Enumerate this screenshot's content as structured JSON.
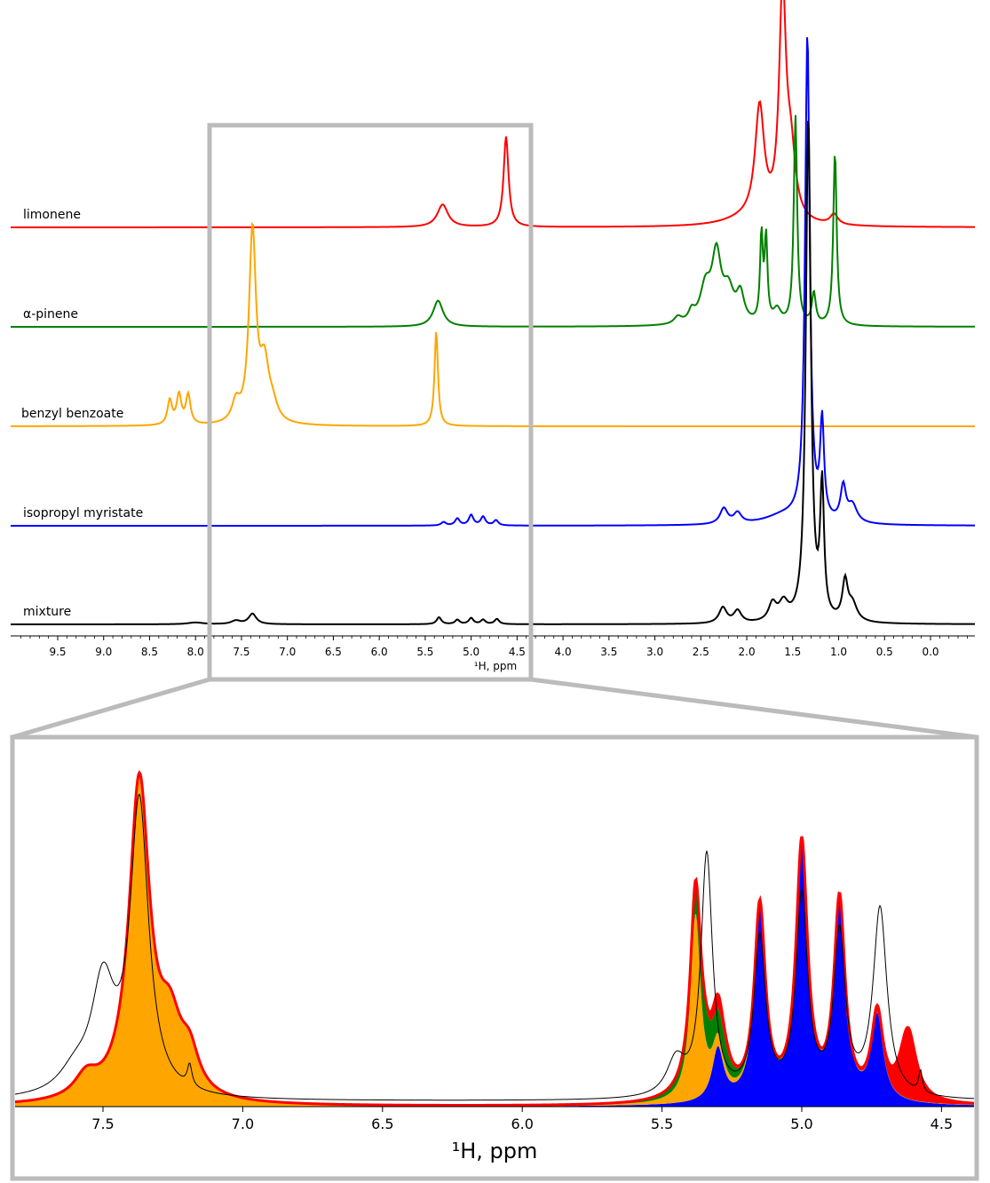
{
  "chart_data": [
    {
      "type": "line",
      "xlabel": "¹H, ppm",
      "x_reversed": true,
      "xlim": [
        9.95,
        -0.5
      ],
      "xticks": [
        "9.5",
        "9.0",
        "8.5",
        "8.0",
        "7.5",
        "7.0",
        "6.5",
        "6.0",
        "5.5",
        "5.0",
        "4.5",
        "4.0",
        "3.5",
        "3.0",
        "2.5",
        "2.0",
        "1.5",
        "1.0",
        "0.5",
        "0.0"
      ],
      "series": [
        {
          "name": "limonene",
          "color": "#ff0000",
          "peaks": [
            {
              "ppm": 5.31,
              "height": 0.13,
              "width": 0.07
            },
            {
              "ppm": 4.62,
              "height": 0.52,
              "width": 0.032
            },
            {
              "ppm": 2.0,
              "height": 0.04,
              "width": 0.3
            },
            {
              "ppm": 1.86,
              "height": 0.64,
              "width": 0.06
            },
            {
              "ppm": 1.61,
              "height": 1.3,
              "width": 0.045
            },
            {
              "ppm": 1.52,
              "height": 0.35,
              "width": 0.06
            },
            {
              "ppm": 1.05,
              "height": 0.06,
              "width": 0.05
            }
          ]
        },
        {
          "name": "α-pinene",
          "color": "#008000",
          "peaks": [
            {
              "ppm": 5.36,
              "height": 0.15,
              "width": 0.065
            },
            {
              "ppm": 2.75,
              "height": 0.04,
              "width": 0.05
            },
            {
              "ppm": 2.6,
              "height": 0.06,
              "width": 0.04
            },
            {
              "ppm": 2.45,
              "height": 0.2,
              "width": 0.07
            },
            {
              "ppm": 2.33,
              "height": 0.38,
              "width": 0.06
            },
            {
              "ppm": 2.2,
              "height": 0.18,
              "width": 0.07
            },
            {
              "ppm": 2.07,
              "height": 0.16,
              "width": 0.05
            },
            {
              "ppm": 1.84,
              "height": 0.5,
              "width": 0.018
            },
            {
              "ppm": 1.79,
              "height": 0.48,
              "width": 0.018
            },
            {
              "ppm": 1.67,
              "height": 0.08,
              "width": 0.05
            },
            {
              "ppm": 1.47,
              "height": 1.2,
              "width": 0.022
            },
            {
              "ppm": 1.27,
              "height": 0.18,
              "width": 0.025
            },
            {
              "ppm": 1.04,
              "height": 1.0,
              "width": 0.022
            }
          ]
        },
        {
          "name": "benzyl benzoate",
          "color": "#ffa500",
          "peaks": [
            {
              "ppm": 8.28,
              "height": 0.14,
              "width": 0.03
            },
            {
              "ppm": 8.18,
              "height": 0.17,
              "width": 0.03
            },
            {
              "ppm": 8.08,
              "height": 0.17,
              "width": 0.03
            },
            {
              "ppm": 7.56,
              "height": 0.11,
              "width": 0.05
            },
            {
              "ppm": 7.38,
              "height": 1.1,
              "width": 0.045
            },
            {
              "ppm": 7.25,
              "height": 0.32,
              "width": 0.06
            },
            {
              "ppm": 7.16,
              "height": 0.08,
              "width": 0.06
            },
            {
              "ppm": 5.38,
              "height": 0.55,
              "width": 0.022
            }
          ]
        },
        {
          "name": "isopropyl myristate",
          "color": "#0000ff",
          "peaks": [
            {
              "ppm": 5.3,
              "height": 0.02,
              "width": 0.03
            },
            {
              "ppm": 5.15,
              "height": 0.04,
              "width": 0.03
            },
            {
              "ppm": 5.0,
              "height": 0.06,
              "width": 0.03
            },
            {
              "ppm": 4.87,
              "height": 0.05,
              "width": 0.03
            },
            {
              "ppm": 4.73,
              "height": 0.03,
              "width": 0.03
            },
            {
              "ppm": 2.25,
              "height": 0.09,
              "width": 0.05
            },
            {
              "ppm": 2.1,
              "height": 0.06,
              "width": 0.05
            },
            {
              "ppm": 1.6,
              "height": 0.05,
              "width": 0.25
            },
            {
              "ppm": 1.34,
              "height": 2.8,
              "width": 0.03
            },
            {
              "ppm": 1.18,
              "height": 0.55,
              "width": 0.025
            },
            {
              "ppm": 0.95,
              "height": 0.2,
              "width": 0.035
            },
            {
              "ppm": 0.85,
              "height": 0.1,
              "width": 0.06
            }
          ]
        },
        {
          "name": "mixture",
          "color": "#000000",
          "peaks": [
            {
              "ppm": 8.0,
              "height": 0.01,
              "width": 0.1
            },
            {
              "ppm": 7.56,
              "height": 0.02,
              "width": 0.06
            },
            {
              "ppm": 7.38,
              "height": 0.06,
              "width": 0.05
            },
            {
              "ppm": 5.35,
              "height": 0.04,
              "width": 0.03
            },
            {
              "ppm": 5.15,
              "height": 0.025,
              "width": 0.03
            },
            {
              "ppm": 5.0,
              "height": 0.035,
              "width": 0.03
            },
            {
              "ppm": 4.87,
              "height": 0.025,
              "width": 0.03
            },
            {
              "ppm": 4.72,
              "height": 0.03,
              "width": 0.03
            },
            {
              "ppm": 2.26,
              "height": 0.09,
              "width": 0.05
            },
            {
              "ppm": 2.1,
              "height": 0.07,
              "width": 0.05
            },
            {
              "ppm": 1.72,
              "height": 0.1,
              "width": 0.05
            },
            {
              "ppm": 1.6,
              "height": 0.1,
              "width": 0.06
            },
            {
              "ppm": 1.33,
              "height": 2.9,
              "width": 0.032
            },
            {
              "ppm": 1.18,
              "height": 0.75,
              "width": 0.025
            },
            {
              "ppm": 0.93,
              "height": 0.22,
              "width": 0.035
            },
            {
              "ppm": 0.85,
              "height": 0.1,
              "width": 0.06
            }
          ]
        }
      ]
    },
    {
      "type": "area",
      "xlabel": "¹H, ppm",
      "x_reversed": true,
      "xlim": [
        7.83,
        4.41
      ],
      "ylim": [
        0,
        1.05
      ],
      "xticks": [
        "7.5",
        "7.0",
        "6.5",
        "6.0",
        "5.5",
        "5.0",
        "4.5"
      ],
      "grid": false,
      "stack_order": [
        "isopropyl myristate",
        "benzyl benzoate",
        "α-pinene",
        "limonene"
      ],
      "series": [
        {
          "name": "isopropyl myristate",
          "color": "#0000ff",
          "peaks": [
            {
              "ppm": 5.3,
              "height": 0.15,
              "width": 0.025
            },
            {
              "ppm": 5.15,
              "height": 0.54,
              "width": 0.024
            },
            {
              "ppm": 5.0,
              "height": 0.72,
              "width": 0.025
            },
            {
              "ppm": 4.865,
              "height": 0.56,
              "width": 0.024
            },
            {
              "ppm": 4.73,
              "height": 0.24,
              "width": 0.025
            }
          ]
        },
        {
          "name": "benzyl benzoate",
          "color": "#ffa500",
          "peaks": [
            {
              "ppm": 7.56,
              "height": 0.06,
              "width": 0.05
            },
            {
              "ppm": 7.37,
              "height": 0.9,
              "width": 0.045
            },
            {
              "ppm": 7.26,
              "height": 0.18,
              "width": 0.05
            },
            {
              "ppm": 7.19,
              "height": 0.1,
              "width": 0.04
            },
            {
              "ppm": 5.38,
              "height": 0.52,
              "width": 0.022
            }
          ]
        },
        {
          "name": "α-pinene",
          "color": "#008000",
          "peaks": [
            {
              "ppm": 5.36,
              "height": 0.1,
              "width": 0.05
            },
            {
              "ppm": 5.28,
              "height": 0.04,
              "width": 0.03
            }
          ]
        },
        {
          "name": "limonene",
          "color": "#ff0000",
          "peaks": [
            {
              "ppm": 5.3,
              "height": 0.04,
              "width": 0.03
            },
            {
              "ppm": 4.62,
              "height": 0.2,
              "width": 0.035
            }
          ]
        },
        {
          "name": "mixture",
          "color": "#000000",
          "fill": false,
          "peaks": [
            {
              "ppm": 7.5,
              "height": 0.3,
              "width": 0.05
            },
            {
              "ppm": 7.37,
              "height": 0.82,
              "width": 0.04
            },
            {
              "ppm": 7.6,
              "height": 0.06,
              "width": 0.07
            },
            {
              "ppm": 7.19,
              "height": 0.06,
              "width": 0.01
            },
            {
              "ppm": 5.45,
              "height": 0.1,
              "width": 0.04
            },
            {
              "ppm": 5.34,
              "height": 0.68,
              "width": 0.025
            },
            {
              "ppm": 5.15,
              "height": 0.44,
              "width": 0.025
            },
            {
              "ppm": 5.0,
              "height": 0.56,
              "width": 0.025
            },
            {
              "ppm": 4.865,
              "height": 0.45,
              "width": 0.025
            },
            {
              "ppm": 4.72,
              "height": 0.53,
              "width": 0.03
            },
            {
              "ppm": 4.575,
              "height": 0.06,
              "width": 0.008
            }
          ]
        }
      ]
    }
  ]
}
